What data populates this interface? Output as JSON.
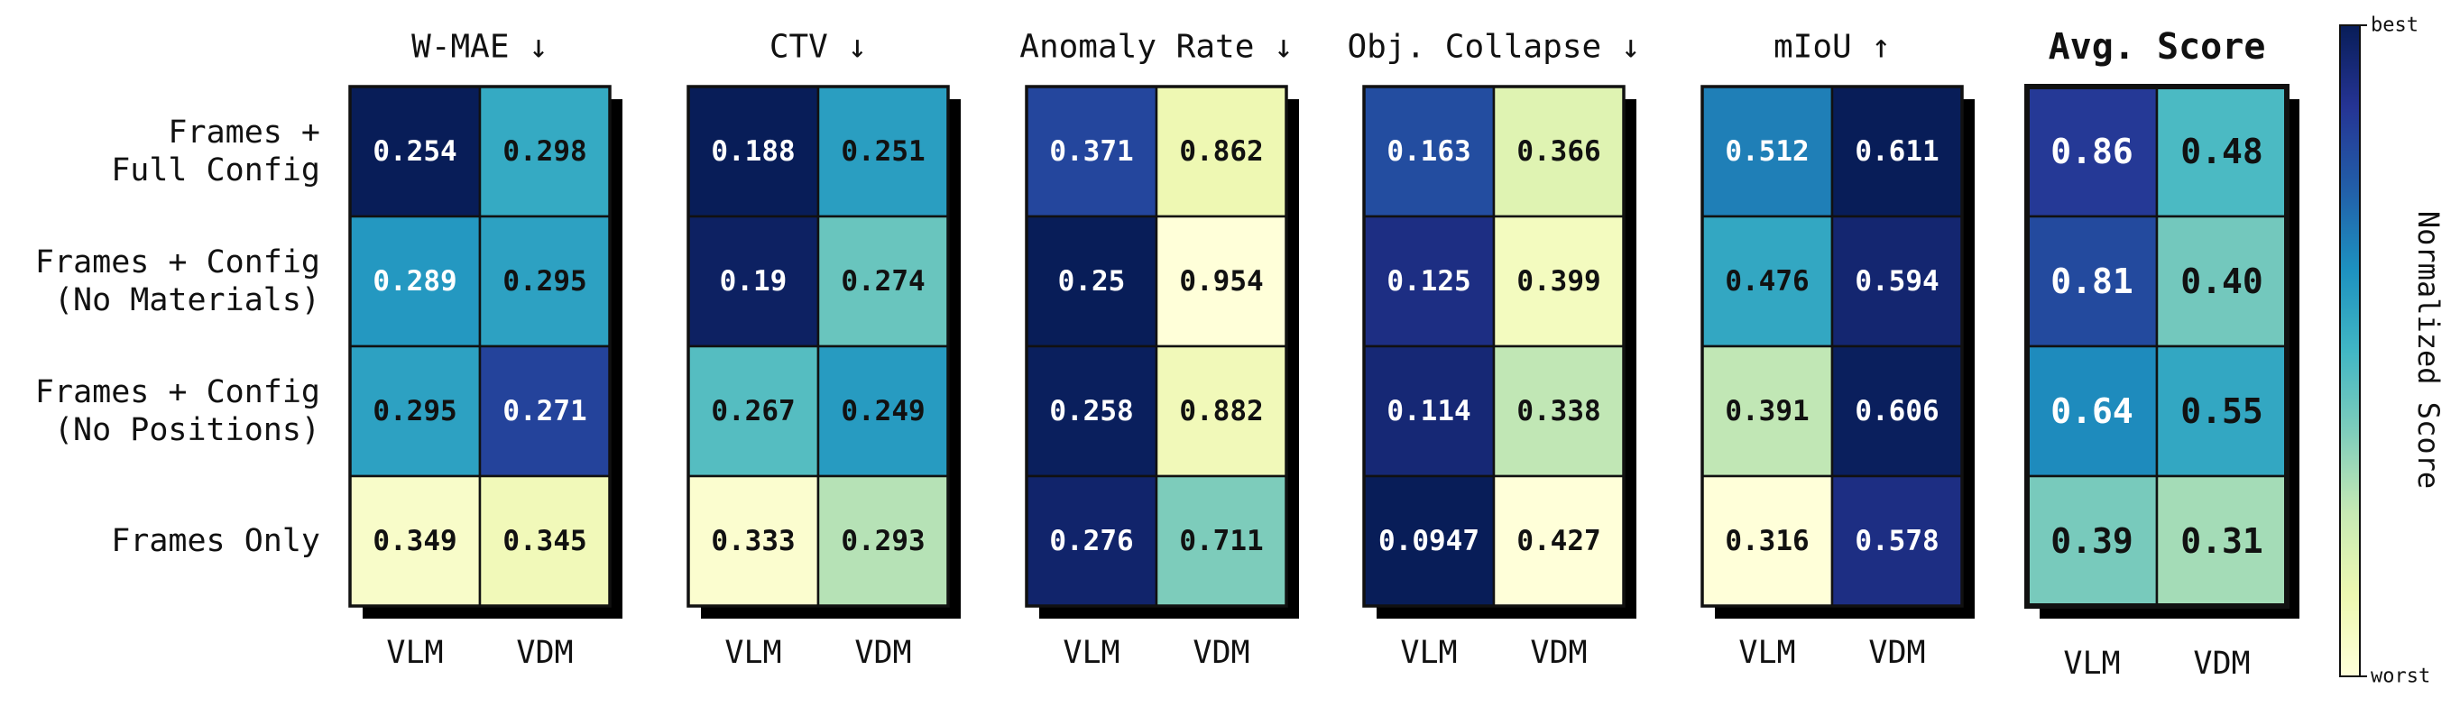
{
  "chart_data": {
    "type": "heatmap",
    "row_labels": [
      [
        "Frames +",
        "Full Config"
      ],
      [
        "Frames + Config",
        "(No Materials)"
      ],
      [
        "Frames + Config",
        "(No Positions)"
      ],
      [
        "Frames Only"
      ]
    ],
    "column_labels": [
      "VLM",
      "VDM"
    ],
    "colorbar": {
      "label": "Normalized Score",
      "top_label": "best",
      "bottom_label": "worst",
      "colors": [
        "#ffffd9",
        "#edf8b1",
        "#c7e9b4",
        "#7fcdbb",
        "#41b6c4",
        "#1d91c0",
        "#225ea8",
        "#253494",
        "#081d58"
      ]
    },
    "panels": [
      {
        "title": "W-MAE",
        "arrow": "↓",
        "values": [
          [
            0.254,
            0.298
          ],
          [
            0.289,
            0.295
          ],
          [
            0.295,
            0.271
          ],
          [
            0.349,
            0.345
          ]
        ],
        "labels": [
          [
            "0.254",
            "0.298"
          ],
          [
            "0.289",
            "0.295"
          ],
          [
            "0.295",
            "0.271"
          ],
          [
            "0.349",
            "0.345"
          ]
        ],
        "scores": [
          [
            1.0,
            0.54
          ],
          [
            0.6,
            0.57
          ],
          [
            0.57,
            0.83
          ],
          [
            0.05,
            0.1
          ]
        ]
      },
      {
        "title": "CTV",
        "arrow": "↓",
        "values": [
          [
            0.188,
            0.251
          ],
          [
            0.19,
            0.274
          ],
          [
            0.267,
            0.249
          ],
          [
            0.333,
            0.293
          ]
        ],
        "labels": [
          [
            "0.188",
            "0.251"
          ],
          [
            "0.19",
            "0.274"
          ],
          [
            "0.267",
            "0.249"
          ],
          [
            "0.333",
            "0.293"
          ]
        ],
        "scores": [
          [
            1.0,
            0.58
          ],
          [
            0.98,
            0.42
          ],
          [
            0.46,
            0.59
          ],
          [
            0.03,
            0.28
          ]
        ]
      },
      {
        "title": "Anomaly Rate",
        "arrow": "↓",
        "values": [
          [
            0.371,
            0.862
          ],
          [
            0.25,
            0.954
          ],
          [
            0.258,
            0.882
          ],
          [
            0.276,
            0.711
          ]
        ],
        "labels": [
          [
            "0.371",
            "0.862"
          ],
          [
            "0.25",
            "0.954"
          ],
          [
            "0.258",
            "0.882"
          ],
          [
            "0.276",
            "0.711"
          ]
        ],
        "scores": [
          [
            0.82,
            0.12
          ],
          [
            1.0,
            0.0
          ],
          [
            0.99,
            0.1
          ],
          [
            0.96,
            0.38
          ]
        ]
      },
      {
        "title": "Obj. Collapse",
        "arrow": "↓",
        "values": [
          [
            0.163,
            0.366
          ],
          [
            0.125,
            0.399
          ],
          [
            0.114,
            0.338
          ],
          [
            0.0947,
            0.427
          ]
        ],
        "labels": [
          [
            "0.163",
            "0.366"
          ],
          [
            "0.125",
            "0.399"
          ],
          [
            "0.114",
            "0.338"
          ],
          [
            "0.0947",
            "0.427"
          ]
        ],
        "scores": [
          [
            0.8,
            0.17
          ],
          [
            0.91,
            0.08
          ],
          [
            0.94,
            0.26
          ],
          [
            1.0,
            0.0
          ]
        ]
      },
      {
        "title": "mIoU",
        "arrow": "↑",
        "values": [
          [
            0.512,
            0.611
          ],
          [
            0.476,
            0.594
          ],
          [
            0.391,
            0.606
          ],
          [
            0.316,
            0.578
          ]
        ],
        "labels": [
          [
            "0.512",
            "0.611"
          ],
          [
            "0.476",
            "0.594"
          ],
          [
            "0.391",
            "0.606"
          ],
          [
            "0.316",
            "0.578"
          ]
        ],
        "scores": [
          [
            0.67,
            1.0
          ],
          [
            0.55,
            0.95
          ],
          [
            0.26,
            0.99
          ],
          [
            0.0,
            0.91
          ]
        ]
      },
      {
        "title": "Avg. Score",
        "arrow": "",
        "bold": true,
        "values": [
          [
            0.86,
            0.48
          ],
          [
            0.81,
            0.4
          ],
          [
            0.64,
            0.55
          ],
          [
            0.39,
            0.31
          ]
        ],
        "labels": [
          [
            "0.86",
            "0.48"
          ],
          [
            "0.81",
            "0.40"
          ],
          [
            "0.64",
            "0.55"
          ],
          [
            "0.39",
            "0.31"
          ]
        ],
        "scores": [
          [
            0.86,
            0.48
          ],
          [
            0.81,
            0.4
          ],
          [
            0.64,
            0.55
          ],
          [
            0.39,
            0.31
          ]
        ]
      }
    ]
  }
}
